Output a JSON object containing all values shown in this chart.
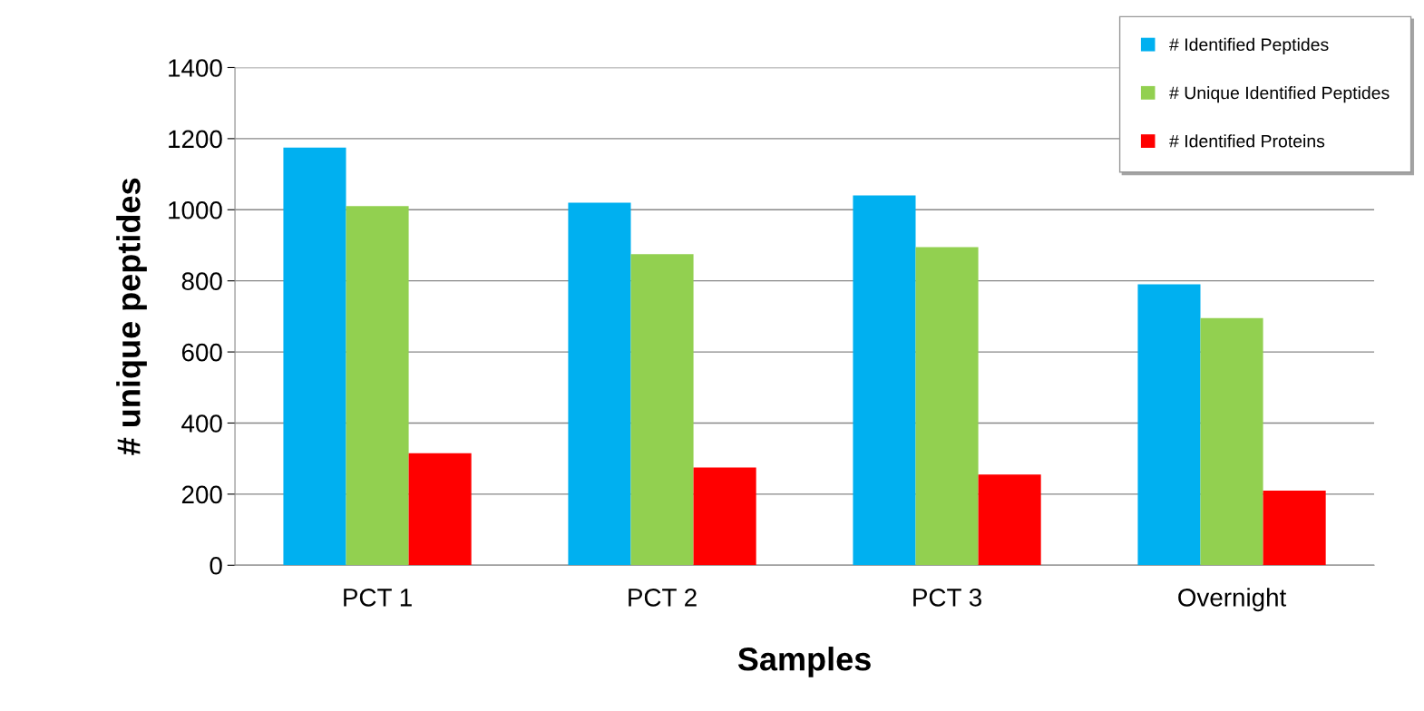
{
  "chart_data": {
    "type": "bar",
    "xlabel": "Samples",
    "ylabel": "# unique peptides",
    "categories": [
      "PCT 1",
      "PCT 2",
      "PCT 3",
      "Overnight"
    ],
    "series": [
      {
        "name": "# Identified Peptides",
        "color": "#00b0f0",
        "values": [
          1175,
          1020,
          1040,
          790
        ]
      },
      {
        "name": "# Unique Identified Peptides",
        "color": "#92d050",
        "values": [
          1010,
          875,
          895,
          695
        ]
      },
      {
        "name": "# Identified Proteins",
        "color": "#ff0000",
        "values": [
          315,
          275,
          255,
          210
        ]
      }
    ],
    "ylim": [
      0,
      1400
    ],
    "yticks": [
      0,
      200,
      400,
      600,
      800,
      1000,
      1200,
      1400
    ],
    "grid": "y",
    "legend": "top right"
  }
}
